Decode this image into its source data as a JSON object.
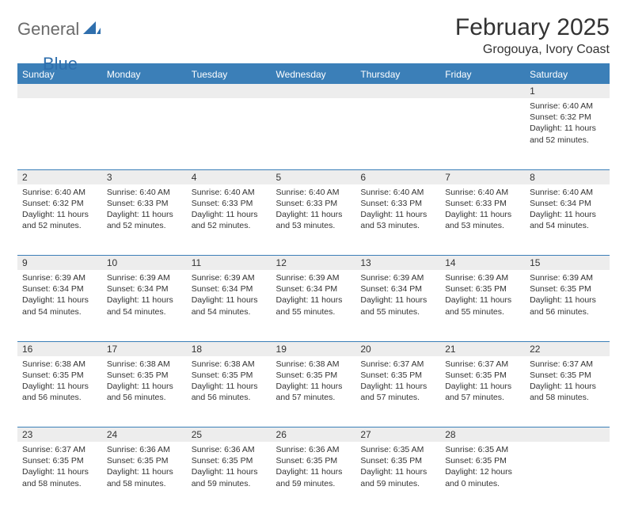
{
  "logo": {
    "text1": "General",
    "text2": "Blue"
  },
  "title": "February 2025",
  "location": "Grogouya, Ivory Coast",
  "colors": {
    "header_bar": "#3b7fb8",
    "rule": "#3b7fb8",
    "daynum_bg": "#ededed",
    "text": "#333333",
    "logo_gray": "#6b6b6b",
    "logo_blue": "#2f6fad",
    "background": "#ffffff"
  },
  "weekdays": [
    "Sunday",
    "Monday",
    "Tuesday",
    "Wednesday",
    "Thursday",
    "Friday",
    "Saturday"
  ],
  "weeks": [
    [
      {
        "n": "",
        "lines": []
      },
      {
        "n": "",
        "lines": []
      },
      {
        "n": "",
        "lines": []
      },
      {
        "n": "",
        "lines": []
      },
      {
        "n": "",
        "lines": []
      },
      {
        "n": "",
        "lines": []
      },
      {
        "n": "1",
        "lines": [
          "Sunrise: 6:40 AM",
          "Sunset: 6:32 PM",
          "Daylight: 11 hours and 52 minutes."
        ]
      }
    ],
    [
      {
        "n": "2",
        "lines": [
          "Sunrise: 6:40 AM",
          "Sunset: 6:32 PM",
          "Daylight: 11 hours and 52 minutes."
        ]
      },
      {
        "n": "3",
        "lines": [
          "Sunrise: 6:40 AM",
          "Sunset: 6:33 PM",
          "Daylight: 11 hours and 52 minutes."
        ]
      },
      {
        "n": "4",
        "lines": [
          "Sunrise: 6:40 AM",
          "Sunset: 6:33 PM",
          "Daylight: 11 hours and 52 minutes."
        ]
      },
      {
        "n": "5",
        "lines": [
          "Sunrise: 6:40 AM",
          "Sunset: 6:33 PM",
          "Daylight: 11 hours and 53 minutes."
        ]
      },
      {
        "n": "6",
        "lines": [
          "Sunrise: 6:40 AM",
          "Sunset: 6:33 PM",
          "Daylight: 11 hours and 53 minutes."
        ]
      },
      {
        "n": "7",
        "lines": [
          "Sunrise: 6:40 AM",
          "Sunset: 6:33 PM",
          "Daylight: 11 hours and 53 minutes."
        ]
      },
      {
        "n": "8",
        "lines": [
          "Sunrise: 6:40 AM",
          "Sunset: 6:34 PM",
          "Daylight: 11 hours and 54 minutes."
        ]
      }
    ],
    [
      {
        "n": "9",
        "lines": [
          "Sunrise: 6:39 AM",
          "Sunset: 6:34 PM",
          "Daylight: 11 hours and 54 minutes."
        ]
      },
      {
        "n": "10",
        "lines": [
          "Sunrise: 6:39 AM",
          "Sunset: 6:34 PM",
          "Daylight: 11 hours and 54 minutes."
        ]
      },
      {
        "n": "11",
        "lines": [
          "Sunrise: 6:39 AM",
          "Sunset: 6:34 PM",
          "Daylight: 11 hours and 54 minutes."
        ]
      },
      {
        "n": "12",
        "lines": [
          "Sunrise: 6:39 AM",
          "Sunset: 6:34 PM",
          "Daylight: 11 hours and 55 minutes."
        ]
      },
      {
        "n": "13",
        "lines": [
          "Sunrise: 6:39 AM",
          "Sunset: 6:34 PM",
          "Daylight: 11 hours and 55 minutes."
        ]
      },
      {
        "n": "14",
        "lines": [
          "Sunrise: 6:39 AM",
          "Sunset: 6:35 PM",
          "Daylight: 11 hours and 55 minutes."
        ]
      },
      {
        "n": "15",
        "lines": [
          "Sunrise: 6:39 AM",
          "Sunset: 6:35 PM",
          "Daylight: 11 hours and 56 minutes."
        ]
      }
    ],
    [
      {
        "n": "16",
        "lines": [
          "Sunrise: 6:38 AM",
          "Sunset: 6:35 PM",
          "Daylight: 11 hours and 56 minutes."
        ]
      },
      {
        "n": "17",
        "lines": [
          "Sunrise: 6:38 AM",
          "Sunset: 6:35 PM",
          "Daylight: 11 hours and 56 minutes."
        ]
      },
      {
        "n": "18",
        "lines": [
          "Sunrise: 6:38 AM",
          "Sunset: 6:35 PM",
          "Daylight: 11 hours and 56 minutes."
        ]
      },
      {
        "n": "19",
        "lines": [
          "Sunrise: 6:38 AM",
          "Sunset: 6:35 PM",
          "Daylight: 11 hours and 57 minutes."
        ]
      },
      {
        "n": "20",
        "lines": [
          "Sunrise: 6:37 AM",
          "Sunset: 6:35 PM",
          "Daylight: 11 hours and 57 minutes."
        ]
      },
      {
        "n": "21",
        "lines": [
          "Sunrise: 6:37 AM",
          "Sunset: 6:35 PM",
          "Daylight: 11 hours and 57 minutes."
        ]
      },
      {
        "n": "22",
        "lines": [
          "Sunrise: 6:37 AM",
          "Sunset: 6:35 PM",
          "Daylight: 11 hours and 58 minutes."
        ]
      }
    ],
    [
      {
        "n": "23",
        "lines": [
          "Sunrise: 6:37 AM",
          "Sunset: 6:35 PM",
          "Daylight: 11 hours and 58 minutes."
        ]
      },
      {
        "n": "24",
        "lines": [
          "Sunrise: 6:36 AM",
          "Sunset: 6:35 PM",
          "Daylight: 11 hours and 58 minutes."
        ]
      },
      {
        "n": "25",
        "lines": [
          "Sunrise: 6:36 AM",
          "Sunset: 6:35 PM",
          "Daylight: 11 hours and 59 minutes."
        ]
      },
      {
        "n": "26",
        "lines": [
          "Sunrise: 6:36 AM",
          "Sunset: 6:35 PM",
          "Daylight: 11 hours and 59 minutes."
        ]
      },
      {
        "n": "27",
        "lines": [
          "Sunrise: 6:35 AM",
          "Sunset: 6:35 PM",
          "Daylight: 11 hours and 59 minutes."
        ]
      },
      {
        "n": "28",
        "lines": [
          "Sunrise: 6:35 AM",
          "Sunset: 6:35 PM",
          "Daylight: 12 hours and 0 minutes."
        ]
      },
      {
        "n": "",
        "lines": []
      }
    ]
  ]
}
